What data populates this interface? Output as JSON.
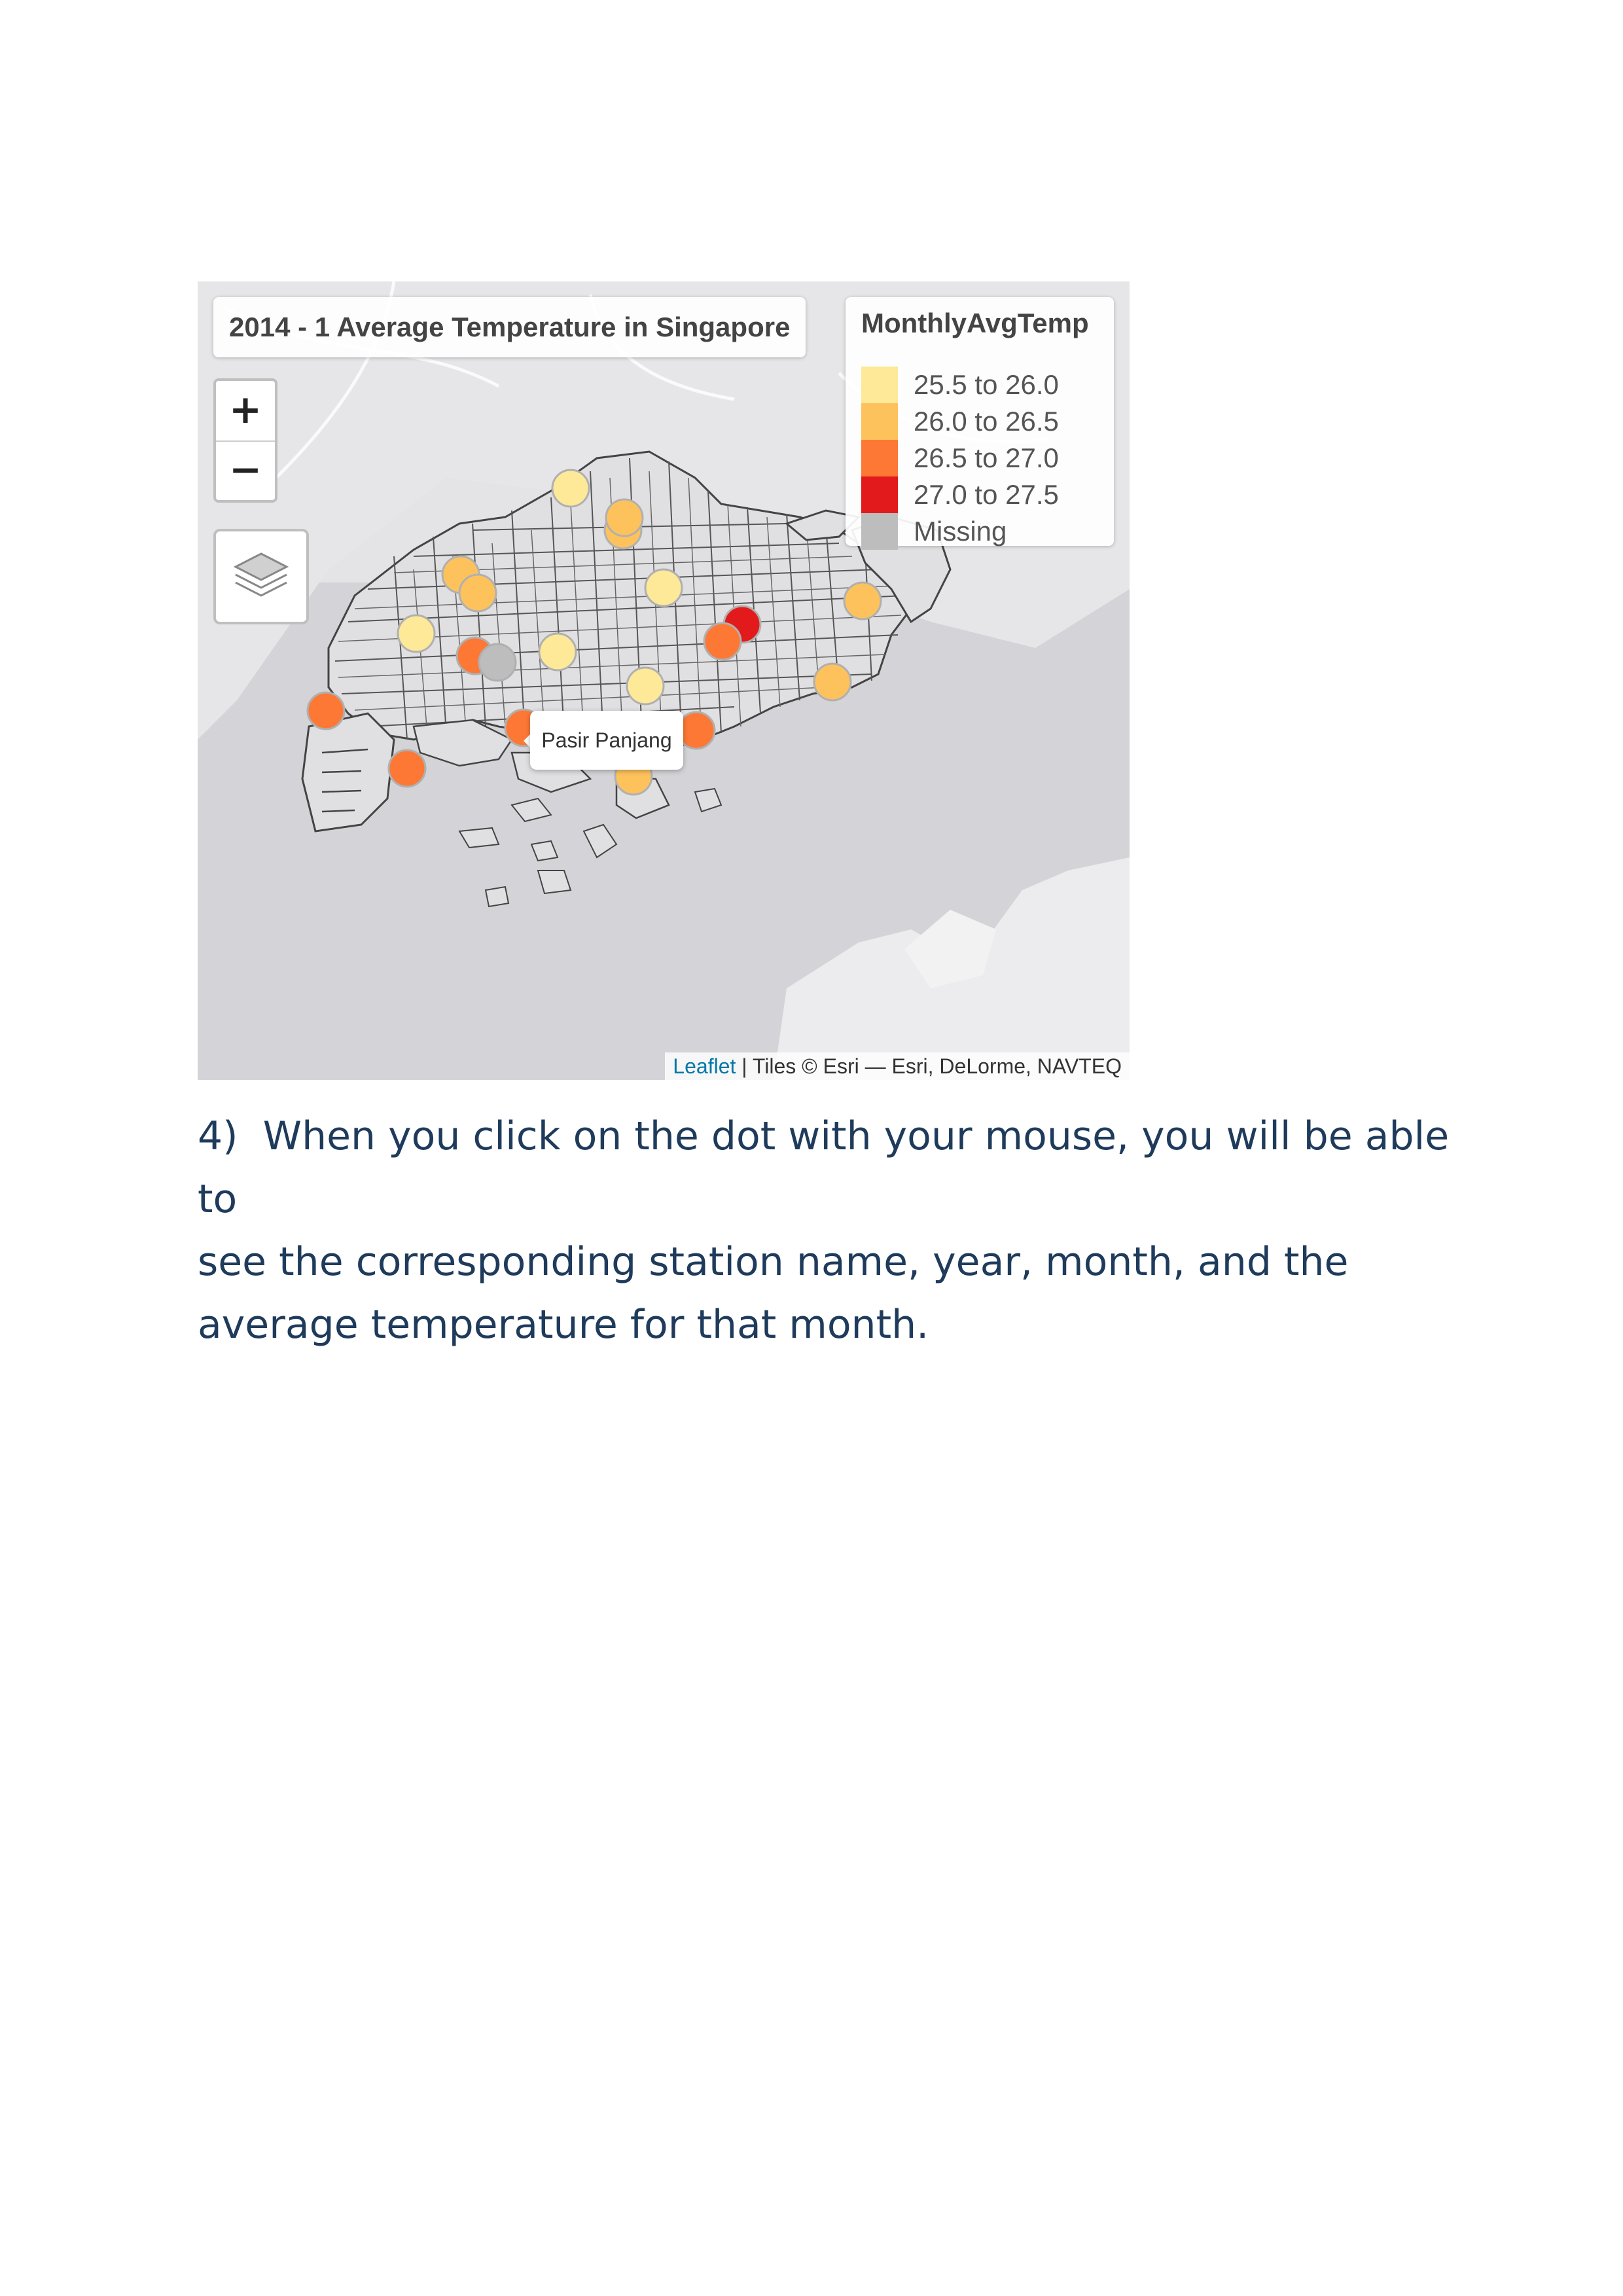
{
  "map": {
    "title": "2014 - 1 Average Temperature in Singapore",
    "legend": {
      "title": "MonthlyAvgTemp",
      "items": [
        {
          "label": "25.5 to 26.0",
          "color": "#fee999"
        },
        {
          "label": "26.0 to 26.5",
          "color": "#fec25c"
        },
        {
          "label": "26.5 to 27.0",
          "color": "#fd7835"
        },
        {
          "label": "27.0 to 27.5",
          "color": "#e31a1c"
        },
        {
          "label": "Missing",
          "color": "#bdbdbd"
        }
      ]
    },
    "zoom_in_label": "+",
    "zoom_out_label": "−",
    "popup_text": "Pasir Panjang",
    "attribution": {
      "leaflet_label": "Leaflet",
      "tiles_text": " | Tiles © Esri — Esri, DeLorme, NAVTEQ"
    }
  },
  "paragraph": {
    "step": "4)",
    "lines": [
      "When you click on the dot with your mouse, you will be able to",
      "see the corresponding station name, year, month, and the",
      "average temperature for that month."
    ]
  }
}
